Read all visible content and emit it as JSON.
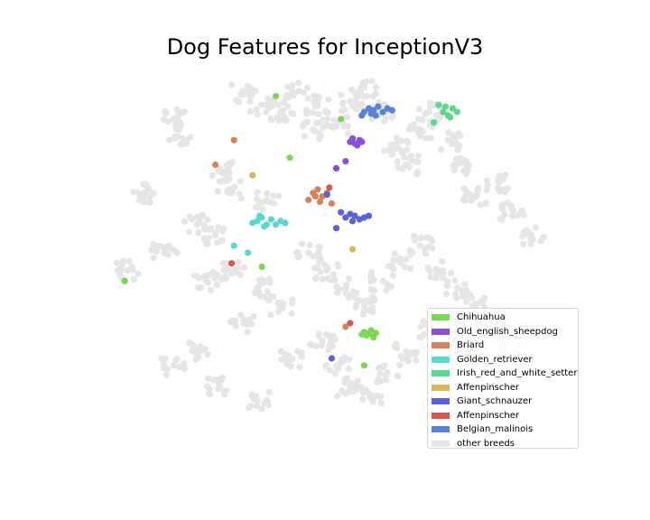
{
  "chart_data": {
    "type": "scatter",
    "title": "Dog Features for InceptionV3",
    "xlabel": "",
    "ylabel": "",
    "axes_visible": false,
    "grid": false,
    "xlim": [
      0,
      100
    ],
    "ylim": [
      0,
      100
    ],
    "legend_position": "lower-right",
    "background_series": {
      "name": "other breeds",
      "color": "#e5e5e5",
      "clusters": [
        [
          [
            15.0,
            88.0
          ],
          [
            16.0,
            83.0
          ],
          [
            9.0,
            67.0
          ],
          [
            13.0,
            50.0
          ],
          [
            26.0,
            73.0
          ],
          [
            35.0,
            65.0
          ],
          [
            5.0,
            45.0
          ],
          [
            27.0,
            68.0
          ],
          [
            20.0,
            58.0
          ],
          [
            24.0,
            55.0
          ]
        ],
        [
          [
            30.0,
            95.0
          ],
          [
            34.0,
            92.0
          ],
          [
            38.0,
            90.0
          ],
          [
            42.0,
            96.0
          ],
          [
            46.0,
            92.0
          ],
          [
            50.0,
            86.0
          ],
          [
            53.0,
            93.0
          ],
          [
            56.0,
            97.0
          ],
          [
            60.0,
            90.0
          ],
          [
            45.0,
            85.0
          ]
        ],
        [
          [
            63.0,
            80.0
          ],
          [
            65.0,
            75.0
          ],
          [
            68.0,
            85.0
          ],
          [
            70.0,
            90.0
          ],
          [
            74.0,
            82.0
          ],
          [
            78.0,
            75.0
          ],
          [
            80.0,
            66.0
          ],
          [
            85.0,
            70.0
          ],
          [
            88.0,
            62.0
          ],
          [
            92.0,
            55.0
          ]
        ],
        [
          [
            22.0,
            42.0
          ],
          [
            28.0,
            45.0
          ],
          [
            33.0,
            40.0
          ],
          [
            38.0,
            35.0
          ],
          [
            30.0,
            30.0
          ],
          [
            20.0,
            22.0
          ],
          [
            15.0,
            18.0
          ],
          [
            25.0,
            12.0
          ],
          [
            33.0,
            8.0
          ],
          [
            40.0,
            20.0
          ]
        ],
        [
          [
            44.0,
            50.0
          ],
          [
            48.0,
            45.0
          ],
          [
            52.0,
            40.0
          ],
          [
            56.0,
            35.0
          ],
          [
            60.0,
            42.0
          ],
          [
            64.0,
            48.0
          ],
          [
            68.0,
            52.0
          ],
          [
            72.0,
            45.0
          ],
          [
            76.0,
            40.0
          ],
          [
            80.0,
            35.0
          ]
        ],
        [
          [
            47.0,
            25.0
          ],
          [
            50.0,
            18.0
          ],
          [
            53.0,
            12.0
          ],
          [
            57.0,
            10.0
          ],
          [
            61.0,
            16.0
          ],
          [
            65.0,
            22.0
          ],
          [
            70.0,
            28.0
          ],
          [
            75.0,
            30.0
          ],
          [
            84.0,
            28.0
          ],
          [
            88.0,
            22.0
          ]
        ]
      ]
    },
    "series": [
      {
        "name": "Chihuahua",
        "color": "#7bd854",
        "points": [
          [
            57.0,
            27.0
          ],
          [
            56.5,
            26.5
          ],
          [
            58.0,
            26.0
          ],
          [
            56.0,
            27.5
          ],
          [
            57.5,
            28.0
          ],
          [
            58.5,
            27.2
          ],
          [
            55.5,
            26.8
          ],
          [
            4.5,
            42.0
          ],
          [
            34.0,
            46.0
          ],
          [
            51.0,
            88.0
          ],
          [
            56.0,
            18.0
          ],
          [
            37.0,
            94.5
          ],
          [
            40.0,
            77.0
          ]
        ]
      },
      {
        "name": "Old_english_sheepdog",
        "color": "#8b4fd8",
        "points": [
          [
            54.0,
            81.0
          ],
          [
            55.0,
            82.0
          ],
          [
            53.5,
            82.5
          ],
          [
            55.5,
            81.5
          ],
          [
            54.5,
            80.5
          ],
          [
            53.0,
            81.5
          ],
          [
            52.0,
            76.0
          ],
          [
            50.0,
            74.0
          ]
        ]
      },
      {
        "name": "Briard",
        "color": "#d8825a",
        "points": [
          [
            45.0,
            67.0
          ],
          [
            46.0,
            68.0
          ],
          [
            47.0,
            66.0
          ],
          [
            44.0,
            65.0
          ],
          [
            46.5,
            64.5
          ],
          [
            48.0,
            67.0
          ],
          [
            45.5,
            66.0
          ],
          [
            28.0,
            82.0
          ],
          [
            24.0,
            75.0
          ],
          [
            52.0,
            29.0
          ],
          [
            49.0,
            64.0
          ]
        ]
      },
      {
        "name": "Golden_retriever",
        "color": "#5ad8d0",
        "points": [
          [
            33.0,
            59.0
          ],
          [
            34.0,
            60.0
          ],
          [
            35.0,
            58.0
          ],
          [
            36.0,
            59.5
          ],
          [
            32.0,
            58.5
          ],
          [
            34.5,
            57.5
          ],
          [
            37.0,
            58.0
          ],
          [
            38.0,
            59.0
          ],
          [
            33.5,
            60.5
          ],
          [
            39.0,
            58.5
          ],
          [
            28.0,
            52.0
          ],
          [
            31.0,
            50.0
          ]
        ]
      },
      {
        "name": "Irish_red_and_white_setter",
        "color": "#5ad88e",
        "points": [
          [
            73.0,
            90.0
          ],
          [
            74.0,
            89.0
          ],
          [
            75.0,
            91.0
          ],
          [
            73.5,
            91.5
          ],
          [
            76.0,
            90.0
          ],
          [
            74.5,
            88.5
          ],
          [
            71.0,
            87.0
          ],
          [
            72.0,
            92.0
          ]
        ]
      },
      {
        "name": "Affenpinscher",
        "color": "#d8b85a",
        "points": [
          [
            32.0,
            72.0
          ],
          [
            53.5,
            51.0
          ],
          [
            79.0,
            22.0
          ]
        ]
      },
      {
        "name": "Giant_schnauzer",
        "color": "#5a62d8",
        "points": [
          [
            52.0,
            60.0
          ],
          [
            53.0,
            61.0
          ],
          [
            54.0,
            60.5
          ],
          [
            55.0,
            59.5
          ],
          [
            53.5,
            59.0
          ],
          [
            56.0,
            60.0
          ],
          [
            51.0,
            61.5
          ],
          [
            57.0,
            60.5
          ],
          [
            50.0,
            57.0
          ],
          [
            48.0,
            66.5
          ],
          [
            49.0,
            20.0
          ]
        ]
      },
      {
        "name": "Affenpinscher",
        "color": "#d8584e",
        "points": [
          [
            53.0,
            30.0
          ],
          [
            48.5,
            68.5
          ],
          [
            27.5,
            47.0
          ]
        ]
      },
      {
        "name": "Belgian_malinois",
        "color": "#5a82d8",
        "points": [
          [
            56.0,
            90.0
          ],
          [
            57.0,
            91.0
          ],
          [
            58.0,
            90.5
          ],
          [
            59.0,
            91.5
          ],
          [
            60.0,
            90.0
          ],
          [
            57.5,
            89.5
          ],
          [
            58.5,
            89.0
          ],
          [
            61.0,
            91.0
          ],
          [
            55.5,
            89.0
          ],
          [
            62.0,
            90.5
          ]
        ]
      }
    ],
    "legend": [
      {
        "label": "Chihuahua",
        "color": "#7bd854"
      },
      {
        "label": "Old_english_sheepdog",
        "color": "#8b4fd8"
      },
      {
        "label": "Briard",
        "color": "#d8825a"
      },
      {
        "label": "Golden_retriever",
        "color": "#5ad8d0"
      },
      {
        "label": "Irish_red_and_white_setter",
        "color": "#5ad88e"
      },
      {
        "label": "Affenpinscher",
        "color": "#d8b85a"
      },
      {
        "label": "Giant_schnauzer",
        "color": "#5a62d8"
      },
      {
        "label": "Affenpinscher",
        "color": "#d8584e"
      },
      {
        "label": "Belgian_malinois",
        "color": "#5a82d8"
      },
      {
        "label": "other breeds",
        "color": "#e5e5e5"
      }
    ]
  }
}
